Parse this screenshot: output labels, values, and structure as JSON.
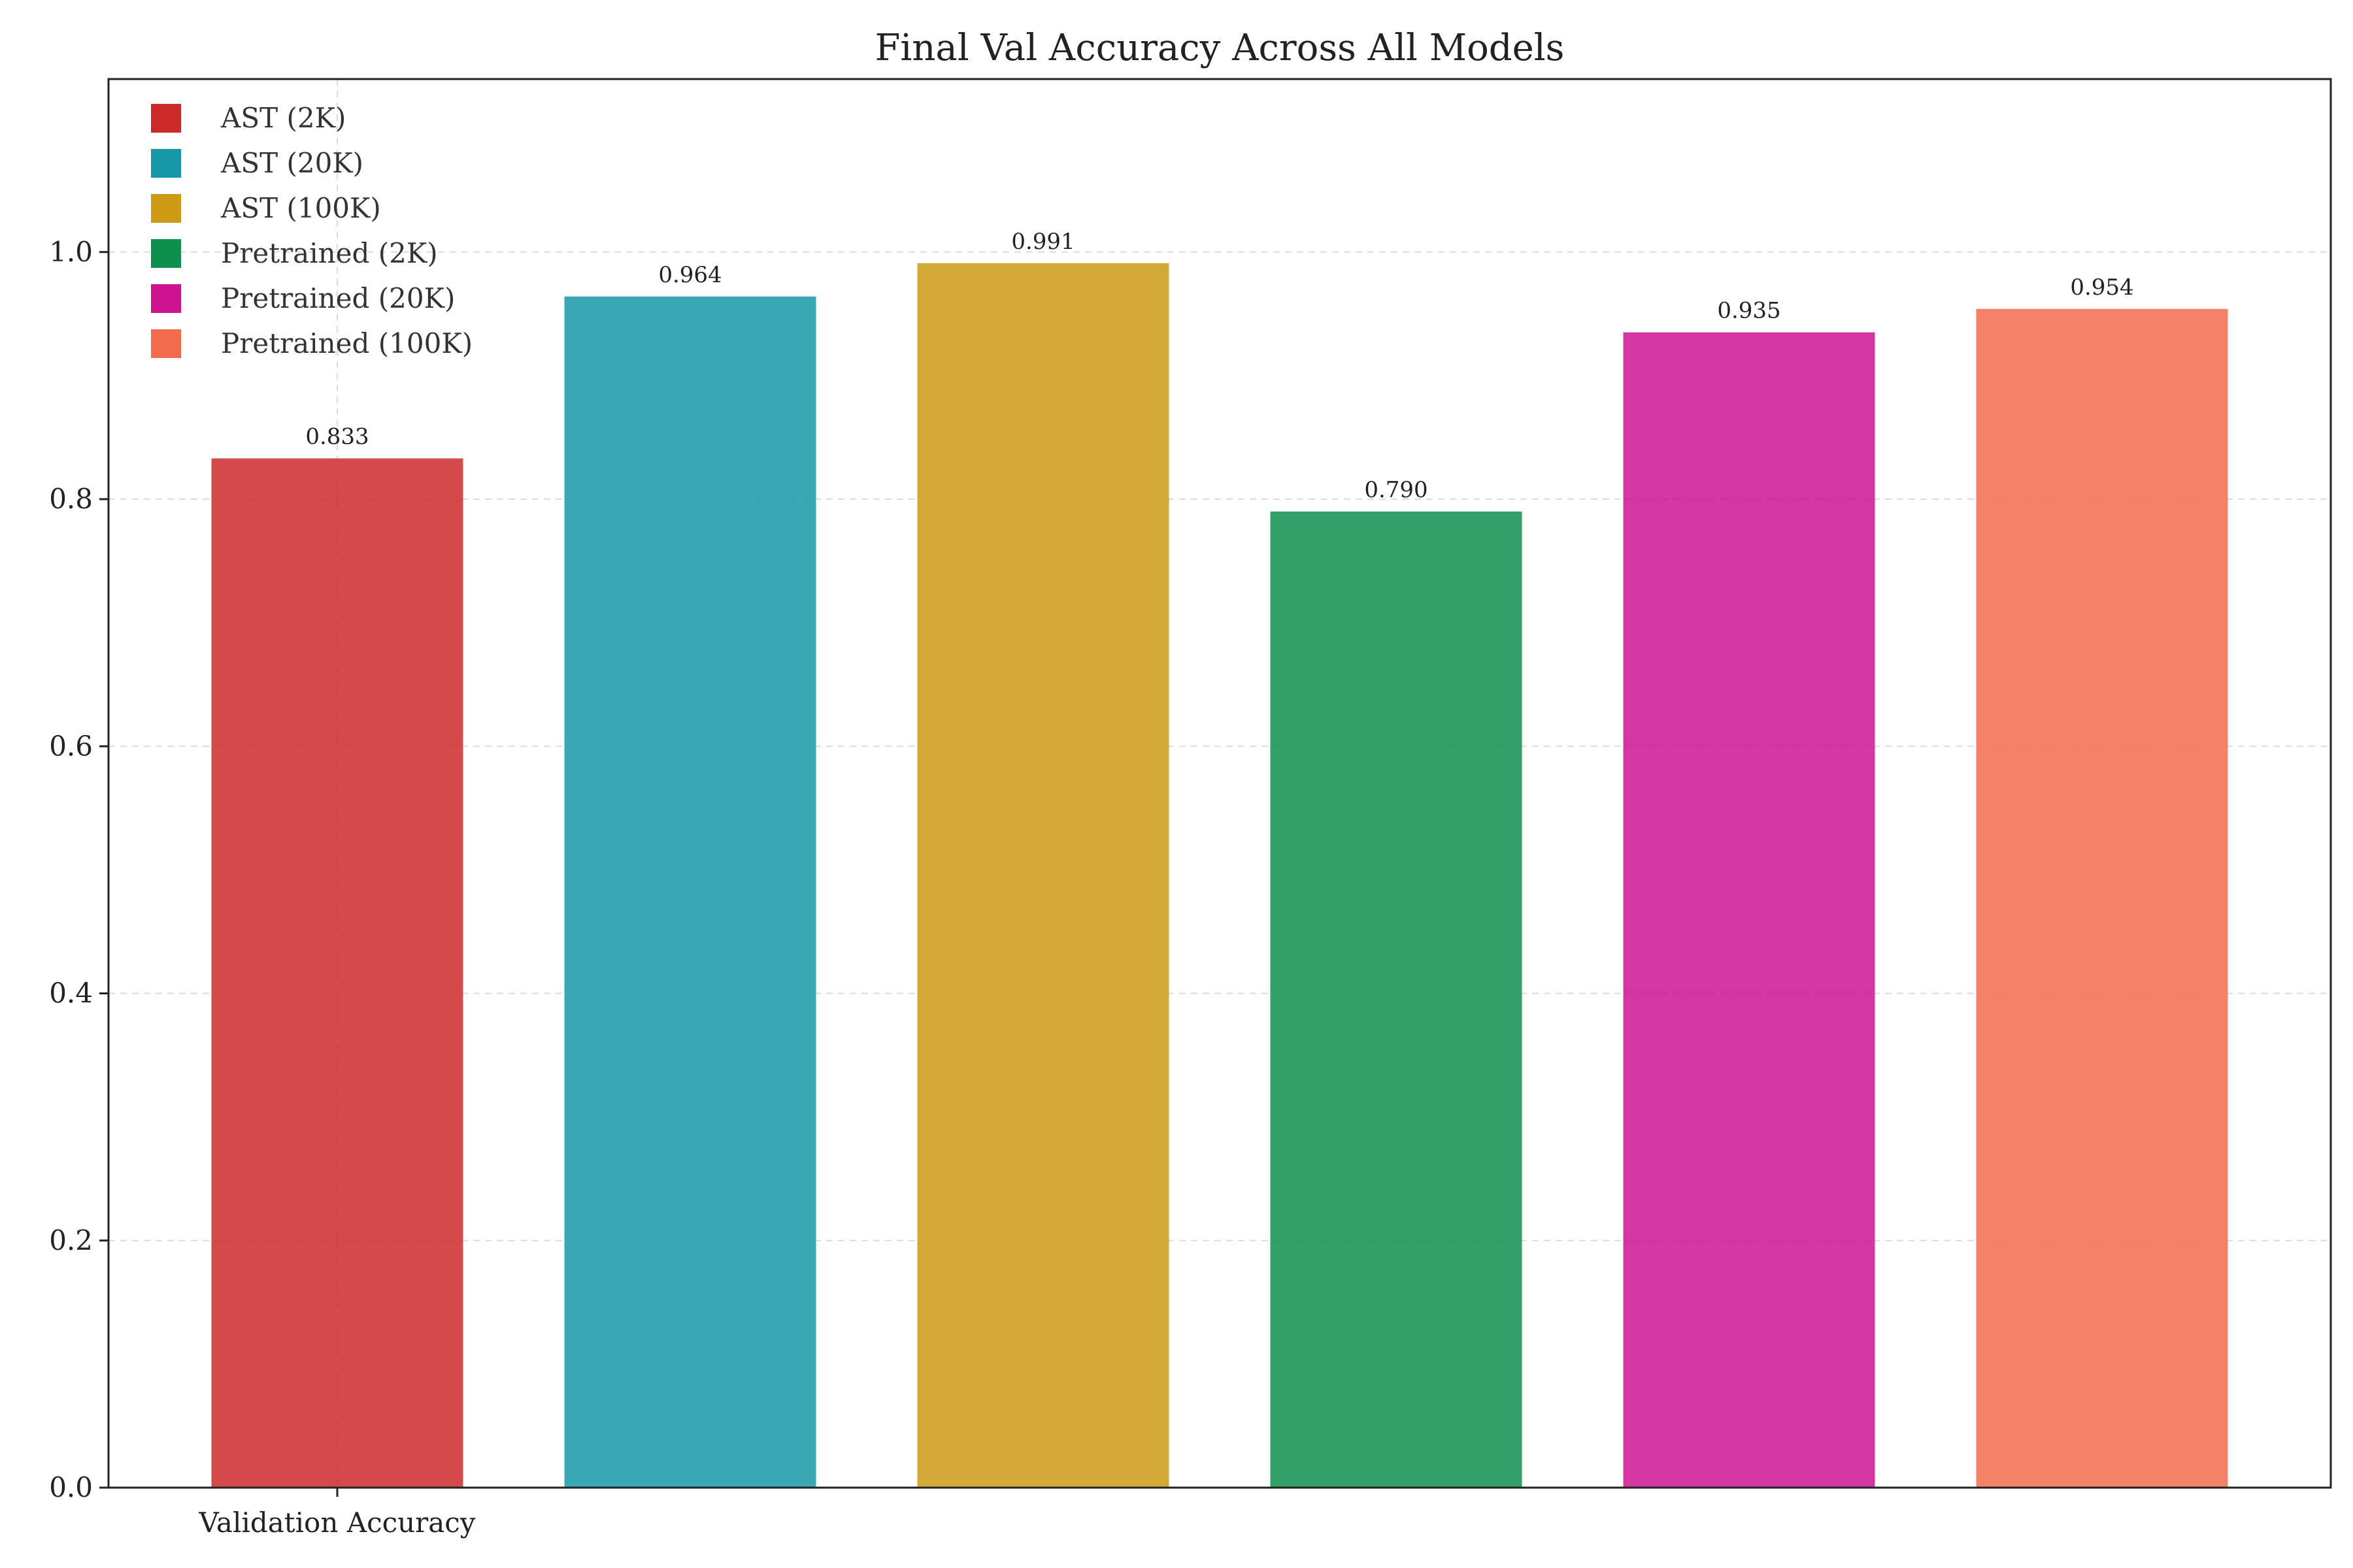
{
  "chart_data": {
    "type": "bar",
    "title": "Final Val Accuracy Across All Models",
    "xlabel": "",
    "ylabel": "",
    "categories": [
      "Validation Accuracy"
    ],
    "ylim": [
      0,
      1.14
    ],
    "yticks": [
      "0.0",
      "0.2",
      "0.4",
      "0.6",
      "0.8",
      "1.0"
    ],
    "grid": true,
    "legend_position": "top-left",
    "series": [
      {
        "name": "AST (2K)",
        "values": [
          0.833
        ],
        "label": "0.833",
        "color": "#cc2a2a"
      },
      {
        "name": "AST (20K)",
        "values": [
          0.964
        ],
        "label": "0.964",
        "color": "#1798a8"
      },
      {
        "name": "AST (100K)",
        "values": [
          0.991
        ],
        "label": "0.991",
        "color": "#cc9a14"
      },
      {
        "name": "Pretrained (2K)",
        "values": [
          0.79
        ],
        "label": "0.790",
        "color": "#0e8f4e"
      },
      {
        "name": "Pretrained (20K)",
        "values": [
          0.935
        ],
        "label": "0.935",
        "color": "#cc1490"
      },
      {
        "name": "Pretrained (100K)",
        "values": [
          0.954
        ],
        "label": "0.954",
        "color": "#f26b4e"
      }
    ]
  }
}
